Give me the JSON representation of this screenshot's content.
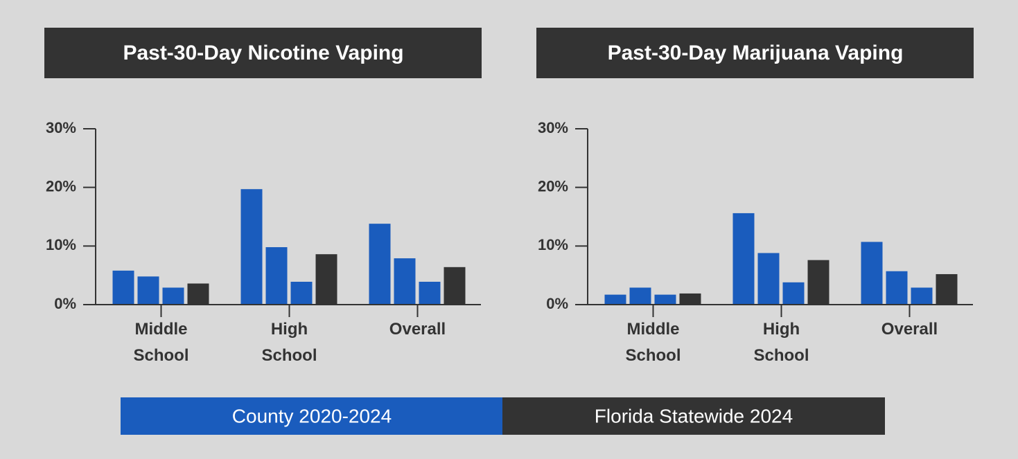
{
  "chart_data": [
    {
      "type": "bar",
      "title": "Past-30-Day Nicotine Vaping",
      "categories": [
        "Middle School",
        "High School",
        "Overall"
      ],
      "series": [
        {
          "name": "County 2020-2024",
          "color": "#1a5cbd",
          "values": [
            [
              5.8,
              4.8,
              2.9
            ],
            [
              19.7,
              9.8,
              3.9
            ],
            [
              13.8,
              7.9,
              3.9
            ]
          ]
        },
        {
          "name": "Florida Statewide 2024",
          "color": "#333333",
          "values": [
            3.6,
            8.6,
            6.4
          ]
        }
      ],
      "ylim": [
        0,
        30
      ],
      "yticks": [
        {
          "value": 0,
          "label": "0%"
        },
        {
          "value": 10,
          "label": "10%"
        },
        {
          "value": 20,
          "label": "20%"
        },
        {
          "value": 30,
          "label": "30%"
        }
      ]
    },
    {
      "type": "bar",
      "title": "Past-30-Day Marijuana Vaping",
      "categories": [
        "Middle School",
        "High School",
        "Overall"
      ],
      "series": [
        {
          "name": "County 2020-2024",
          "color": "#1a5cbd",
          "values": [
            [
              1.7,
              2.9,
              1.7
            ],
            [
              15.6,
              8.8,
              3.8
            ],
            [
              10.7,
              5.7,
              2.9
            ]
          ]
        },
        {
          "name": "Florida Statewide 2024",
          "color": "#333333",
          "values": [
            1.9,
            7.6,
            5.2
          ]
        }
      ],
      "ylim": [
        0,
        30
      ],
      "yticks": [
        {
          "value": 0,
          "label": "0%"
        },
        {
          "value": 10,
          "label": "10%"
        },
        {
          "value": 20,
          "label": "20%"
        },
        {
          "value": 30,
          "label": "30%"
        }
      ]
    }
  ]
}
